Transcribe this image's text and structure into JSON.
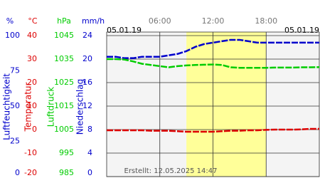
{
  "chart_data": {
    "type": "line",
    "date_left": "05.01.19",
    "date_right": "05.01.19",
    "footer": "Erstellt: 12.05.2025 14:47",
    "xlim": [
      0,
      24
    ],
    "xticks": [
      {
        "value": 6,
        "label": "06:00"
      },
      {
        "value": 12,
        "label": "12:00"
      },
      {
        "value": 18,
        "label": "18:00"
      }
    ],
    "shaded_range": [
      9,
      18
    ],
    "y_axes": [
      {
        "unit": "%",
        "title": "Luftfeuchtigkeit",
        "color": "#0000cc",
        "lim": [
          0,
          100
        ],
        "ticks": [
          100,
          75,
          50,
          25,
          0
        ]
      },
      {
        "unit": "°C",
        "title": "Temperatur",
        "color": "#dd0000",
        "lim": [
          -20,
          40
        ],
        "ticks": [
          40,
          30,
          20,
          10,
          0,
          -10,
          -20
        ]
      },
      {
        "unit": "hPa",
        "title": "Luftdruck",
        "color": "#00cc00",
        "lim": [
          985,
          1045
        ],
        "ticks": [
          1045,
          1035,
          1025,
          1015,
          1005,
          995,
          985
        ]
      },
      {
        "unit": "mm/h",
        "title": "Niederschlag",
        "color": "#0000cc",
        "lim": [
          0,
          24
        ],
        "ticks": [
          24,
          20,
          16,
          12,
          8,
          4,
          0
        ]
      }
    ],
    "x": [
      0,
      1,
      2,
      3,
      4,
      5,
      6,
      7,
      8,
      9,
      10,
      11,
      12,
      13,
      14,
      15,
      16,
      17,
      18,
      19,
      20,
      21,
      22,
      23,
      24
    ],
    "series": [
      {
        "axis": 0,
        "color": "#0000cc",
        "values": [
          85,
          85,
          84,
          84,
          85,
          85,
          85,
          86,
          87,
          89,
          92,
          94,
          95,
          96,
          97,
          97,
          96,
          95,
          95,
          95,
          95,
          95,
          95,
          95,
          95
        ]
      },
      {
        "axis": 1,
        "color": "#dd0000",
        "values": [
          -0.3,
          -0.3,
          -0.3,
          -0.3,
          -0.3,
          -0.5,
          -0.5,
          -0.5,
          -0.7,
          -0.9,
          -0.9,
          -0.9,
          -0.9,
          -0.7,
          -0.5,
          -0.5,
          -0.3,
          -0.3,
          -0.1,
          0,
          0,
          0,
          0.1,
          0.3,
          0.3
        ]
      },
      {
        "axis": 2,
        "color": "#00cc00",
        "values": [
          1035,
          1035,
          1034.8,
          1034,
          1033,
          1032.5,
          1032,
          1031.5,
          1032,
          1032.3,
          1032.5,
          1032.6,
          1032.7,
          1032.5,
          1031.5,
          1031.3,
          1031.3,
          1031.3,
          1031.3,
          1031.4,
          1031.4,
          1031.4,
          1031.5,
          1031.5,
          1031.6
        ]
      }
    ]
  }
}
